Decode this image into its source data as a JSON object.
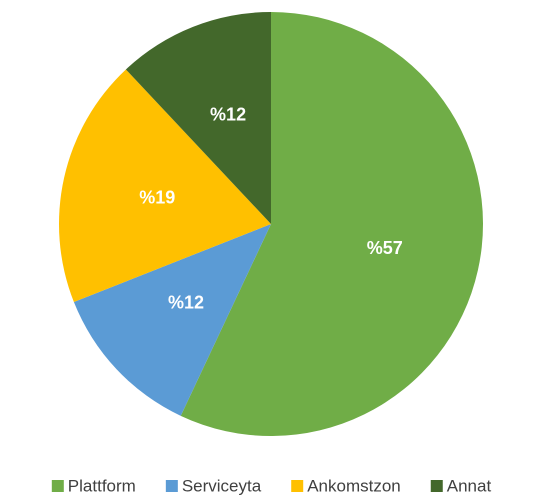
{
  "chart_data": {
    "type": "pie",
    "categories": [
      "Plattform",
      "Serviceyta",
      "Ankomstzon",
      "Annat"
    ],
    "values": [
      57,
      12,
      19,
      12
    ],
    "value_labels": [
      "%57",
      "%12",
      "%19",
      "%12"
    ],
    "colors": [
      "#70ad47",
      "#5b9bd5",
      "#ffc000",
      "#43682b"
    ],
    "legend": "bottom"
  }
}
